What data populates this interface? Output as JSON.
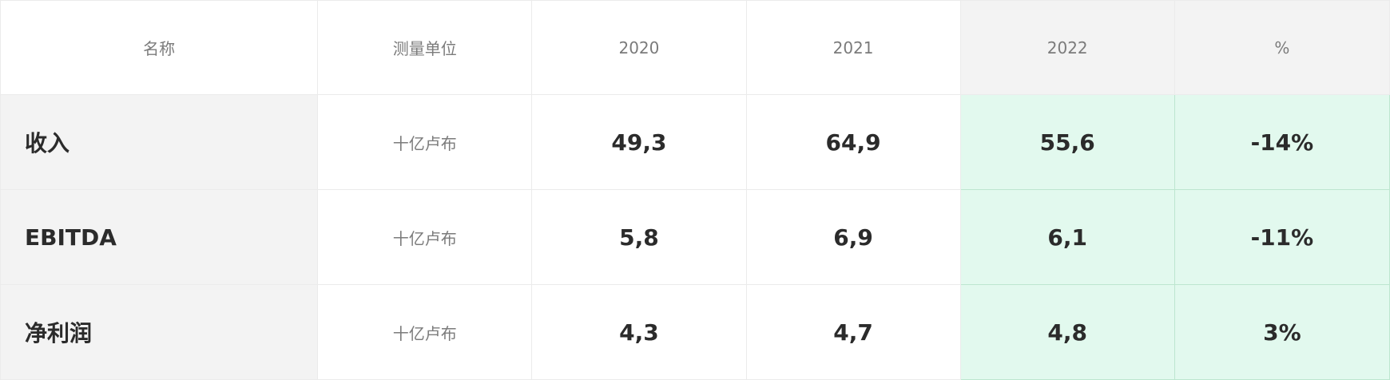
{
  "table": {
    "headers": {
      "name": "名称",
      "unit": "测量单位",
      "y2020": "2020",
      "y2021": "2021",
      "y2022": "2022",
      "pct": "%"
    },
    "rows": [
      {
        "name": "收入",
        "unit": "十亿卢布",
        "y2020": "49,3",
        "y2021": "64,9",
        "y2022": "55,6",
        "pct": "-14%"
      },
      {
        "name": "EBITDA",
        "unit": "十亿卢布",
        "y2020": "5,8",
        "y2021": "6,9",
        "y2022": "6,1",
        "pct": "-11%"
      },
      {
        "name": "净利润",
        "unit": "十亿卢布",
        "y2020": "4,3",
        "y2021": "4,7",
        "y2022": "4,8",
        "pct": "3%"
      }
    ]
  },
  "colors": {
    "header_text": "#7b7b7b",
    "body_text": "#2b2b2b",
    "name_column_bg": "#f3f3f3",
    "highlight_bg": "#e2f9ee",
    "highlight_border": "#bde6cf",
    "grid_border": "#ebebeb"
  }
}
